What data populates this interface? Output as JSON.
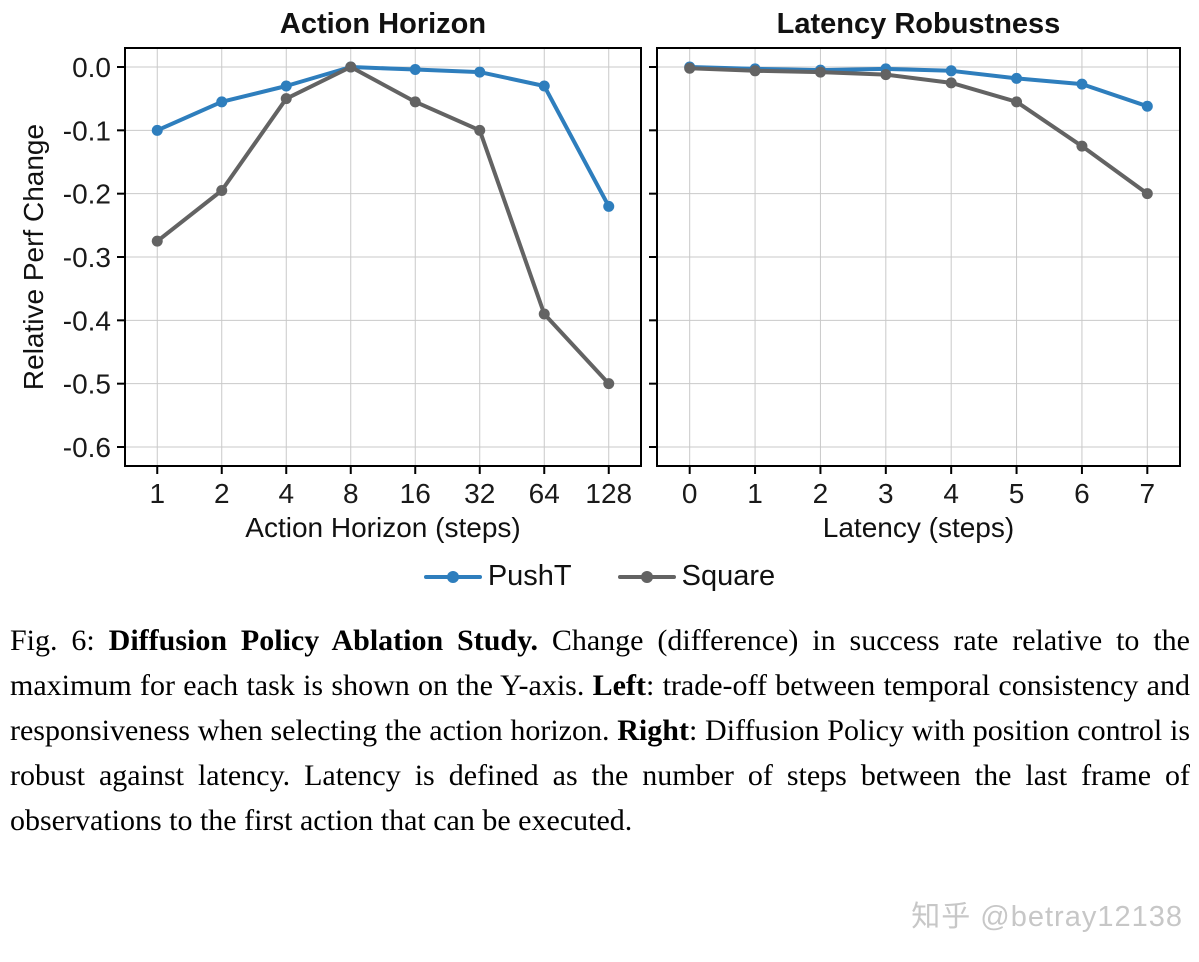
{
  "colors": {
    "pusht_blue": "#2e7ebd",
    "square_gray": "#636363",
    "grid_gray": "#c9c9c9",
    "frame_black": "#000000",
    "watermark_gray": "#c7c7c7"
  },
  "chart_data": [
    {
      "type": "line",
      "title": "Action Horizon",
      "xlabel": "Action Horizon (steps)",
      "ylabel": "Relative Perf Change",
      "categories": [
        "1",
        "2",
        "4",
        "8",
        "16",
        "32",
        "64",
        "128"
      ],
      "yticks": [
        "0.0",
        "-0.1",
        "-0.2",
        "-0.3",
        "-0.4",
        "-0.5",
        "-0.6"
      ],
      "ylim": [
        0.03,
        -0.63
      ],
      "grid": true,
      "show_ytick_labels": true,
      "series": [
        {
          "name": "PushT",
          "color": "#2e7ebd",
          "values": [
            -0.1,
            -0.055,
            -0.03,
            0.0,
            -0.004,
            -0.008,
            -0.03,
            -0.22
          ]
        },
        {
          "name": "Square",
          "color": "#636363",
          "values": [
            -0.275,
            -0.195,
            -0.05,
            0.0,
            -0.055,
            -0.1,
            -0.39,
            -0.5
          ]
        }
      ]
    },
    {
      "type": "line",
      "title": "Latency Robustness",
      "xlabel": "Latency (steps)",
      "ylabel": "",
      "categories": [
        "0",
        "1",
        "2",
        "3",
        "4",
        "5",
        "6",
        "7"
      ],
      "yticks": [
        "0.0",
        "-0.1",
        "-0.2",
        "-0.3",
        "-0.4",
        "-0.5",
        "-0.6"
      ],
      "ylim": [
        0.03,
        -0.63
      ],
      "grid": true,
      "show_ytick_labels": false,
      "series": [
        {
          "name": "PushT",
          "color": "#2e7ebd",
          "values": [
            0.0,
            -0.003,
            -0.005,
            -0.003,
            -0.006,
            -0.018,
            -0.027,
            -0.062
          ]
        },
        {
          "name": "Square",
          "color": "#636363",
          "values": [
            -0.002,
            -0.006,
            -0.008,
            -0.012,
            -0.025,
            -0.055,
            -0.125,
            -0.2
          ]
        }
      ]
    }
  ],
  "legend": {
    "entries": [
      {
        "label": "PushT",
        "color": "#2e7ebd"
      },
      {
        "label": "Square",
        "color": "#636363"
      }
    ]
  },
  "caption": {
    "segments": [
      {
        "text": "Fig. 6: ",
        "bold": false
      },
      {
        "text": "Diffusion Policy Ablation Study.",
        "bold": true
      },
      {
        "text": " Change (difference) in success rate relative to the maximum for each task is shown on the Y-axis. ",
        "bold": false
      },
      {
        "text": "Left",
        "bold": true
      },
      {
        "text": ": trade-off between temporal consistency and responsiveness when selecting the action horizon. ",
        "bold": false
      },
      {
        "text": "Right",
        "bold": true
      },
      {
        "text": ": Diffusion Policy with position control is robust against latency. Latency is defined as the number of steps between the last frame of observations to the first action that can be executed.",
        "bold": false
      }
    ]
  },
  "watermark": {
    "text": "知乎 @betray12138"
  }
}
